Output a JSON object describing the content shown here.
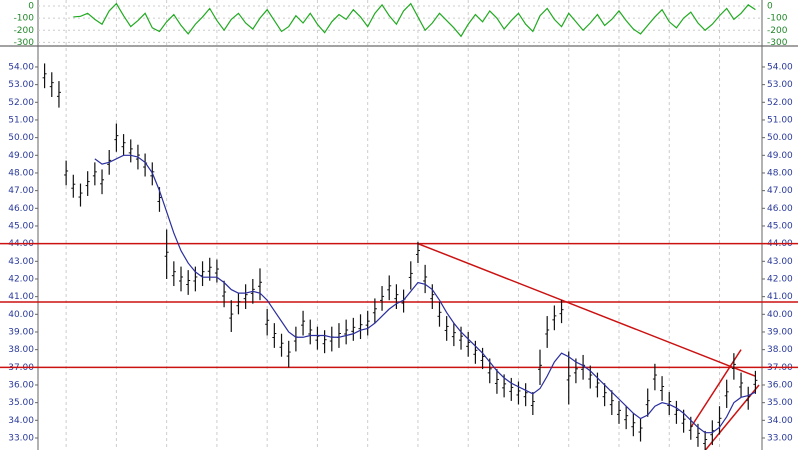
{
  "chart_data": {
    "type": "hl_bars",
    "highs": [
      54.2,
      53.7,
      53.2,
      48.7,
      47.9,
      47.4,
      48.1,
      48.6,
      48.2,
      49.3,
      50.8,
      50.2,
      49.9,
      49.6,
      49.1,
      48.6,
      47.2,
      44.8,
      43.0,
      42.7,
      42.5,
      42.7,
      43.0,
      43.2,
      43.1,
      41.9,
      40.8,
      41.2,
      41.7,
      42.0,
      42.6,
      40.3,
      39.5,
      38.9,
      38.5,
      39.3,
      40.2,
      39.7,
      39.3,
      39.1,
      39.3,
      39.5,
      39.7,
      39.8,
      40.0,
      40.2,
      40.9,
      41.6,
      42.2,
      41.7,
      41.4,
      43.0,
      44.1,
      42.8,
      41.7,
      40.7,
      39.9,
      39.5,
      39.3,
      39.0,
      38.5,
      38.1,
      37.5,
      36.9,
      36.6,
      36.4,
      36.2,
      36.1,
      35.6,
      38.0,
      39.9,
      40.5,
      40.8,
      37.9,
      37.5,
      37.7,
      37.1,
      36.7,
      36.1,
      35.7,
      35.1,
      34.8,
      34.4,
      34.1,
      35.8,
      37.2,
      36.5,
      35.6,
      35.1,
      34.6,
      34.2,
      33.8,
      33.4,
      34.0,
      34.8,
      36.3,
      37.8,
      36.7,
      35.9,
      36.8
    ],
    "lows": [
      52.8,
      52.3,
      51.7,
      47.3,
      46.6,
      46.1,
      46.7,
      47.3,
      46.8,
      47.9,
      49.2,
      49.0,
      48.6,
      48.2,
      47.8,
      47.3,
      45.8,
      42.0,
      41.6,
      41.3,
      41.1,
      41.3,
      41.6,
      41.9,
      41.8,
      40.4,
      39.0,
      40.0,
      40.3,
      40.6,
      40.8,
      38.8,
      38.1,
      37.6,
      37.0,
      37.9,
      38.8,
      38.3,
      38.0,
      37.8,
      37.9,
      38.1,
      38.3,
      38.5,
      38.6,
      38.8,
      39.5,
      40.2,
      40.8,
      40.3,
      40.1,
      41.4,
      42.9,
      41.2,
      40.3,
      39.3,
      38.5,
      38.2,
      38.0,
      37.6,
      37.2,
      36.9,
      36.1,
      35.5,
      35.3,
      35.1,
      34.9,
      34.8,
      34.3,
      36.0,
      38.1,
      39.1,
      39.5,
      34.9,
      36.1,
      36.3,
      35.8,
      35.3,
      34.8,
      34.3,
      33.8,
      33.5,
      33.1,
      32.8,
      34.2,
      35.7,
      35.1,
      34.3,
      33.8,
      33.3,
      32.9,
      32.5,
      32.2,
      32.6,
      33.2,
      34.7,
      36.3,
      35.3,
      34.6,
      35.5
    ],
    "ma": [
      null,
      null,
      null,
      null,
      null,
      null,
      null,
      48.8,
      48.5,
      48.6,
      48.8,
      49.0,
      49.0,
      48.9,
      48.6,
      48.0,
      47.0,
      45.8,
      44.6,
      43.6,
      42.9,
      42.4,
      42.1,
      42.1,
      42.1,
      41.8,
      41.4,
      41.2,
      41.2,
      41.3,
      41.2,
      40.8,
      40.2,
      39.6,
      39.0,
      38.7,
      38.7,
      38.8,
      38.8,
      38.8,
      38.7,
      38.7,
      38.8,
      38.9,
      39.1,
      39.2,
      39.5,
      39.9,
      40.3,
      40.6,
      40.8,
      41.3,
      41.8,
      41.7,
      41.4,
      40.8,
      40.1,
      39.5,
      39.0,
      38.6,
      38.2,
      37.8,
      37.3,
      36.8,
      36.4,
      36.1,
      35.9,
      35.7,
      35.5,
      35.8,
      36.5,
      37.3,
      37.8,
      37.6,
      37.3,
      37.1,
      36.8,
      36.4,
      36.0,
      35.6,
      35.2,
      34.8,
      34.4,
      34.1,
      34.3,
      34.8,
      35.0,
      34.9,
      34.7,
      34.4,
      34.0,
      33.6,
      33.3,
      33.3,
      33.6,
      34.2,
      35.0,
      35.3,
      35.4,
      35.6
    ],
    "ma_color": "#2b2f9e",
    "bar_color": "#111111",
    "hlines": [
      44,
      40.7,
      37
    ],
    "line_color": "#cc1111",
    "trendlines": [
      {
        "x": [
          52,
          99
        ],
        "y": [
          44,
          36.5
        ]
      },
      {
        "x": [
          90,
          97
        ],
        "y": [
          33.6,
          38.0
        ]
      },
      {
        "x": [
          92,
          99.5
        ],
        "y": [
          32.3,
          36.0
        ]
      }
    ],
    "ylim": [
      32.32,
      55.13
    ],
    "yticks": [
      {
        "value": 33,
        "label": "33.00"
      },
      {
        "value": 34,
        "label": "34.00"
      },
      {
        "value": 35,
        "label": "35.00"
      },
      {
        "value": 36,
        "label": "36.00"
      },
      {
        "value": 37,
        "label": "37.00"
      },
      {
        "value": 38,
        "label": "38.00"
      },
      {
        "value": 39,
        "label": "39.00"
      },
      {
        "value": 40,
        "label": "40.00"
      },
      {
        "value": 41,
        "label": "41.00"
      },
      {
        "value": 42,
        "label": "42.00"
      },
      {
        "value": 43,
        "label": "43.00"
      },
      {
        "value": 44,
        "label": "44.00"
      },
      {
        "value": 45,
        "label": "45.00"
      },
      {
        "value": 46,
        "label": "46.00"
      },
      {
        "value": 47,
        "label": "47.00"
      },
      {
        "value": 48,
        "label": "48.00"
      },
      {
        "value": 49,
        "label": "49.00"
      },
      {
        "value": 50,
        "label": "50.00"
      },
      {
        "value": 51,
        "label": "51.00"
      },
      {
        "value": 52,
        "label": "52.00"
      },
      {
        "value": 53,
        "label": "53.00"
      },
      {
        "value": 54,
        "label": "54.00"
      }
    ],
    "oscillator": [
      null,
      null,
      null,
      null,
      -90,
      -85,
      -60,
      -110,
      -150,
      -40,
      20,
      -80,
      -170,
      -120,
      -60,
      -180,
      -210,
      -130,
      -70,
      -160,
      -230,
      -150,
      -90,
      -20,
      -120,
      -200,
      -110,
      -60,
      -140,
      -190,
      -100,
      -30,
      -120,
      -210,
      -170,
      -80,
      -140,
      -60,
      -150,
      -220,
      -130,
      -70,
      -110,
      -30,
      -90,
      -170,
      -60,
      10,
      -80,
      -150,
      -40,
      20,
      -90,
      -200,
      -140,
      -60,
      -120,
      -180,
      -250,
      -150,
      -70,
      -130,
      -40,
      -100,
      -190,
      -120,
      -60,
      -150,
      -210,
      -80,
      -20,
      -110,
      -170,
      -60,
      -130,
      -200,
      -140,
      -70,
      -160,
      -110,
      -40,
      -120,
      -190,
      -230,
      -160,
      -90,
      -30,
      -130,
      -180,
      -100,
      -50,
      -140,
      -200,
      -150,
      -80,
      -20,
      -110,
      -60,
      10,
      -30
    ],
    "osc_color": "#22aa22",
    "osc_ylim": [
      -330,
      50
    ],
    "osc_yticks": [
      0,
      -100,
      -200,
      -300
    ]
  }
}
